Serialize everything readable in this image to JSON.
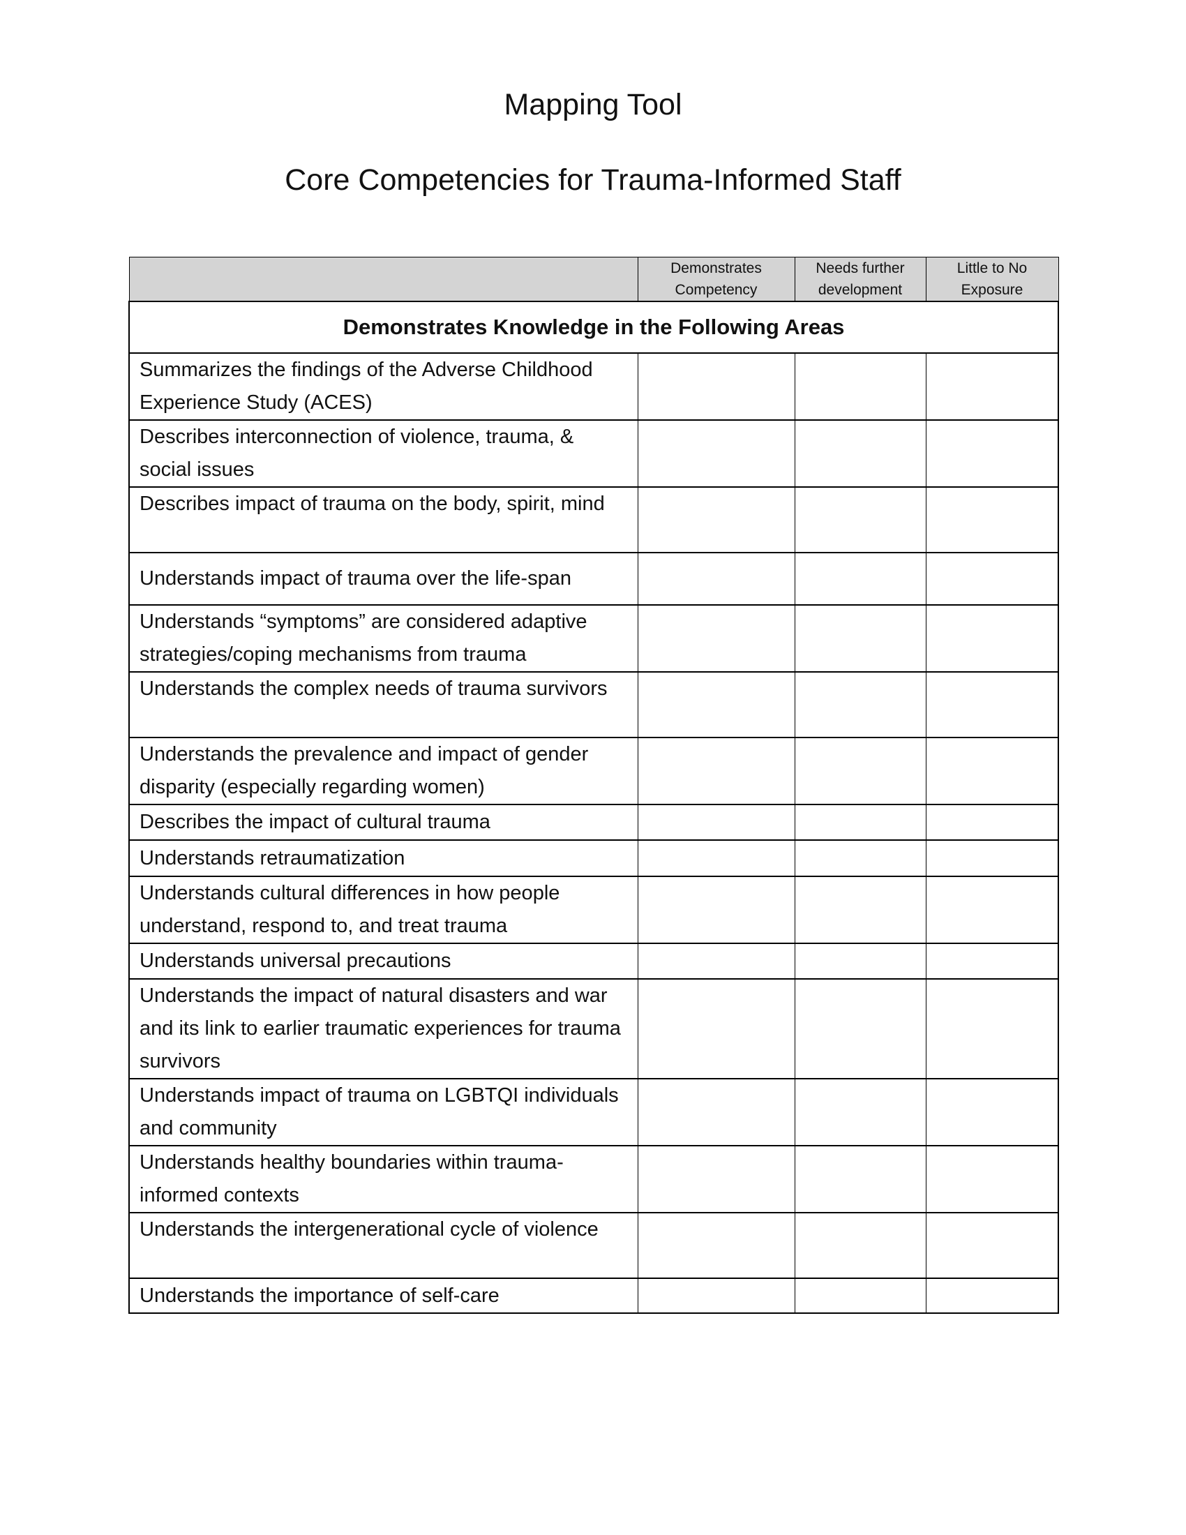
{
  "title": "Mapping Tool",
  "subtitle": "Core Competencies for Trauma-Informed Staff",
  "table": {
    "columns": [
      "",
      "Demonstrates Competency",
      "Needs further development",
      "Little to No Exposure"
    ],
    "section_heading": "Demonstrates Knowledge in the Following Areas",
    "rows": [
      "Summarizes the findings of the Adverse Childhood Experience Study (ACES)",
      "Describes interconnection of violence, trauma, & social issues",
      "Describes impact of trauma on the body, spirit, mind",
      "Understands impact of trauma over the life-span",
      "Understands “symptoms” are considered adaptive strategies/coping mechanisms from trauma",
      "Understands the complex needs of trauma survivors",
      "Understands the prevalence and impact of gender disparity (especially regarding women)",
      "Describes the impact of cultural trauma",
      "Understands retraumatization",
      "Understands cultural differences in how people understand, respond to, and treat trauma",
      "Understands universal precautions",
      "Understands the impact of natural disasters and war and its link to earlier traumatic experiences for trauma survivors",
      "Understands impact of trauma on LGBTQI individuals and community",
      "Understands healthy boundaries within trauma-informed contexts",
      "Understands the intergenerational cycle of violence",
      "Understands the importance of self-care"
    ]
  }
}
